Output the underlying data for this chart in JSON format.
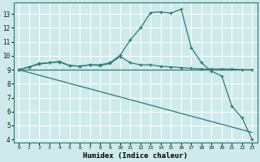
{
  "background_color": "#ceeaea",
  "grid_color": "#ffffff",
  "line_color": "#2a7a7a",
  "xlabel": "Humidex (Indice chaleur)",
  "xlim": [
    -0.5,
    23.5
  ],
  "ylim": [
    3.8,
    13.8
  ],
  "yticks": [
    4,
    5,
    6,
    7,
    8,
    9,
    10,
    11,
    12,
    13
  ],
  "xticks": [
    0,
    1,
    2,
    3,
    4,
    5,
    6,
    7,
    8,
    9,
    10,
    11,
    12,
    13,
    14,
    15,
    16,
    17,
    18,
    19,
    20,
    21,
    22,
    23
  ],
  "series": [
    {
      "x": [
        0,
        1,
        2,
        3,
        4,
        5,
        6,
        7,
        8,
        9,
        10,
        11,
        12,
        13,
        14,
        15,
        16,
        17,
        18,
        19,
        20,
        21,
        22,
        23
      ],
      "y": [
        9.0,
        9.2,
        9.45,
        9.5,
        9.6,
        9.3,
        9.25,
        9.35,
        9.35,
        9.5,
        10.05,
        11.15,
        12.0,
        13.1,
        13.15,
        13.05,
        13.35,
        10.6,
        9.5,
        8.9,
        8.55,
        6.4,
        5.55,
        4.0
      ],
      "marker": true
    },
    {
      "x": [
        0,
        1,
        2,
        3,
        4,
        5,
        6,
        7,
        8,
        9,
        10,
        11,
        12,
        13,
        14,
        15,
        16,
        17,
        18,
        19,
        20,
        21,
        22,
        23
      ],
      "y": [
        9.0,
        9.2,
        9.4,
        9.5,
        9.55,
        9.3,
        9.25,
        9.35,
        9.3,
        9.45,
        9.95,
        9.5,
        9.35,
        9.35,
        9.25,
        9.2,
        9.15,
        9.1,
        9.05,
        9.05,
        9.05,
        9.05,
        9.0,
        9.0
      ],
      "marker": true
    },
    {
      "x": [
        0,
        23
      ],
      "y": [
        9.0,
        9.0
      ],
      "marker": false
    },
    {
      "x": [
        0,
        23
      ],
      "y": [
        9.0,
        4.5
      ],
      "marker": false
    }
  ]
}
